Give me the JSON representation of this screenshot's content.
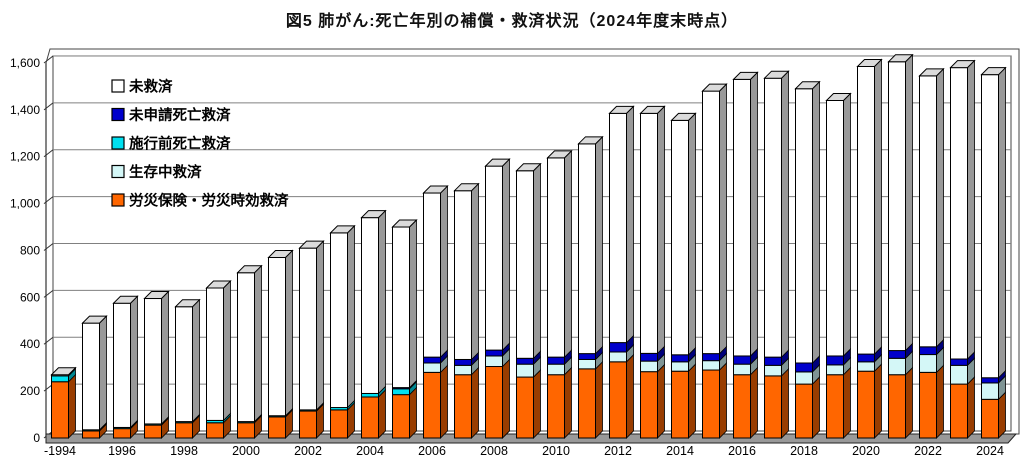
{
  "title": "図5  肺がん:死亡年別の補償・救済状況（2024年度末時点）",
  "chart_data": {
    "type": "bar",
    "stacked": true,
    "style": "3d-columns",
    "title": "図5  肺がん:死亡年別の補償・救済状況（2024年度末時点）",
    "xlabel": "",
    "ylabel": "",
    "ylim": [
      0,
      1600
    ],
    "ytick_step": 200,
    "y_tick_labels": [
      "0",
      "200",
      "400",
      "600",
      "800",
      "1,000",
      "1,200",
      "1,400",
      "1,600"
    ],
    "grid": true,
    "legend_position": "upper-left-inside",
    "legend_order": [
      "未救済",
      "未申請死亡救済",
      "施行前死亡救済",
      "生存中救済",
      "労災保険・労災時効救済"
    ],
    "categories": [
      "-1994",
      "1995",
      "1996",
      "1997",
      "1998",
      "1999",
      "2000",
      "2001",
      "2002",
      "2003",
      "2004",
      "2005",
      "2006",
      "2007",
      "2008",
      "2009",
      "2010",
      "2011",
      "2012",
      "2013",
      "2014",
      "2015",
      "2016",
      "2017",
      "2018",
      "2019",
      "2020",
      "2021",
      "2022",
      "2023",
      "2024"
    ],
    "x_tick_labels": [
      "-1994",
      "1996",
      "1998",
      "2000",
      "2002",
      "2004",
      "2006",
      "2008",
      "2010",
      "2012",
      "2014",
      "2016",
      "2018",
      "2020",
      "2022",
      "2024"
    ],
    "series": [
      {
        "name": "労災保険・労災時効救済",
        "color": "#FF6600",
        "values": [
          240,
          30,
          40,
          55,
          65,
          65,
          65,
          90,
          115,
          120,
          175,
          185,
          280,
          270,
          305,
          260,
          270,
          295,
          325,
          283,
          285,
          290,
          270,
          265,
          230,
          270,
          285,
          270,
          280,
          230,
          165
        ]
      },
      {
        "name": "生存中救済",
        "color": "#D4F7F7",
        "values": [
          0,
          0,
          0,
          0,
          0,
          0,
          0,
          0,
          0,
          0,
          0,
          0,
          40,
          40,
          45,
          55,
          45,
          40,
          42,
          45,
          40,
          40,
          45,
          45,
          52,
          42,
          40,
          70,
          76,
          80,
          70
        ]
      },
      {
        "name": "施行前死亡救済",
        "color": "#00E0F0",
        "values": [
          25,
          5,
          5,
          5,
          5,
          10,
          5,
          5,
          5,
          10,
          15,
          25,
          0,
          0,
          0,
          0,
          0,
          0,
          0,
          0,
          0,
          0,
          0,
          0,
          0,
          0,
          0,
          0,
          0,
          0,
          0
        ]
      },
      {
        "name": "未申請死亡救済",
        "color": "#0000CC",
        "values": [
          0,
          0,
          0,
          0,
          0,
          0,
          0,
          0,
          0,
          0,
          0,
          5,
          25,
          25,
          25,
          25,
          30,
          25,
          40,
          33,
          30,
          30,
          35,
          35,
          38,
          38,
          33,
          33,
          33,
          27,
          22
        ]
      },
      {
        "name": "未救済",
        "color": "#FFFFFF",
        "values": [
          5,
          455,
          530,
          535,
          490,
          565,
          635,
          675,
          690,
          745,
          750,
          685,
          700,
          720,
          785,
          800,
          850,
          895,
          978,
          1024,
          1000,
          1120,
          1180,
          1190,
          1170,
          1090,
          1227,
          1232,
          1156,
          1243,
          1293
        ]
      }
    ]
  }
}
